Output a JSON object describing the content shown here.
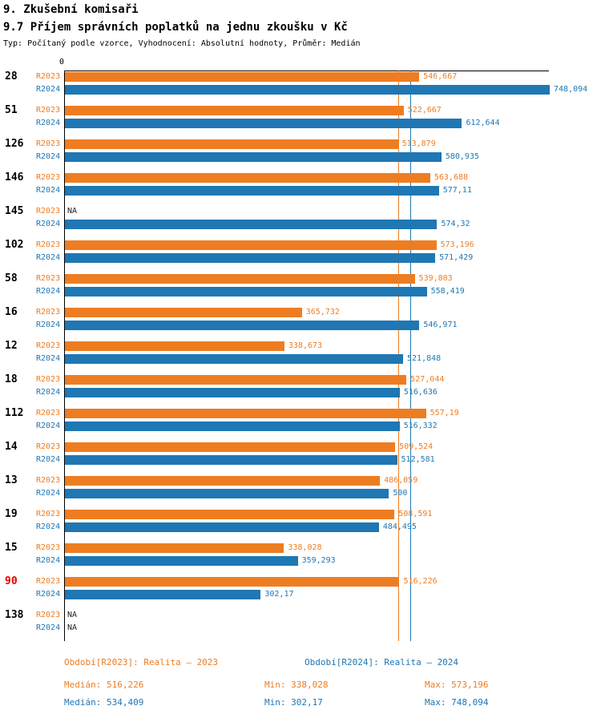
{
  "header": {
    "title1": "9. Zkušební komisaři",
    "title2": "9.7 Příjem správních poplatků na jednu zkoušku v Kč",
    "subtitle": "Typ: Počítaný podle vzorce, Vyhodnocení: Absolutní hodnoty, Průměr: Medián"
  },
  "colors": {
    "r2023": "#EE7D22",
    "r2024": "#1F77B4",
    "highlight": "#E80000",
    "axis": "#000000",
    "na_text": "#222222"
  },
  "chart_data": {
    "type": "bar",
    "orientation": "horizontal",
    "xlim": [
      0,
      748.094
    ],
    "axis_zero_label": "0",
    "grid": false,
    "series_labels": {
      "r2023": "R2023",
      "r2024": "R2024"
    },
    "reference_lines": [
      {
        "series": "r2023",
        "value": 516.226,
        "meaning": "Medián R2023"
      },
      {
        "series": "r2024",
        "value": 534.409,
        "meaning": "Medián R2024"
      }
    ],
    "groups": [
      {
        "id": "28",
        "highlight": false,
        "r2023": {
          "value": 546.667,
          "label": "546,667"
        },
        "r2024": {
          "value": 748.094,
          "label": "748,094"
        }
      },
      {
        "id": "51",
        "highlight": false,
        "r2023": {
          "value": 522.667,
          "label": "522,667"
        },
        "r2024": {
          "value": 612.644,
          "label": "612,644"
        }
      },
      {
        "id": "126",
        "highlight": false,
        "r2023": {
          "value": 513.879,
          "label": "513,879"
        },
        "r2024": {
          "value": 580.935,
          "label": "580,935"
        }
      },
      {
        "id": "146",
        "highlight": false,
        "r2023": {
          "value": 563.688,
          "label": "563,688"
        },
        "r2024": {
          "value": 577.11,
          "label": "577,11"
        }
      },
      {
        "id": "145",
        "highlight": false,
        "r2023": {
          "value": null,
          "label": "NA"
        },
        "r2024": {
          "value": 574.32,
          "label": "574,32"
        }
      },
      {
        "id": "102",
        "highlight": false,
        "r2023": {
          "value": 573.196,
          "label": "573,196"
        },
        "r2024": {
          "value": 571.429,
          "label": "571,429"
        }
      },
      {
        "id": "58",
        "highlight": false,
        "r2023": {
          "value": 539.803,
          "label": "539,803"
        },
        "r2024": {
          "value": 558.419,
          "label": "558,419"
        }
      },
      {
        "id": "16",
        "highlight": false,
        "r2023": {
          "value": 365.732,
          "label": "365,732"
        },
        "r2024": {
          "value": 546.971,
          "label": "546,971"
        }
      },
      {
        "id": "12",
        "highlight": false,
        "r2023": {
          "value": 338.673,
          "label": "338,673"
        },
        "r2024": {
          "value": 521.848,
          "label": "521,848"
        }
      },
      {
        "id": "18",
        "highlight": false,
        "r2023": {
          "value": 527.044,
          "label": "527,044"
        },
        "r2024": {
          "value": 516.636,
          "label": "516,636"
        }
      },
      {
        "id": "112",
        "highlight": false,
        "r2023": {
          "value": 557.19,
          "label": "557,19"
        },
        "r2024": {
          "value": 516.332,
          "label": "516,332"
        }
      },
      {
        "id": "14",
        "highlight": false,
        "r2023": {
          "value": 509.524,
          "label": "509,524"
        },
        "r2024": {
          "value": 512.581,
          "label": "512,581"
        }
      },
      {
        "id": "13",
        "highlight": false,
        "r2023": {
          "value": 486.059,
          "label": "486,059"
        },
        "r2024": {
          "value": 500,
          "label": "500"
        }
      },
      {
        "id": "19",
        "highlight": false,
        "r2023": {
          "value": 508.591,
          "label": "508,591"
        },
        "r2024": {
          "value": 484.495,
          "label": "484,495"
        }
      },
      {
        "id": "15",
        "highlight": false,
        "r2023": {
          "value": 338.028,
          "label": "338,028"
        },
        "r2024": {
          "value": 359.293,
          "label": "359,293"
        }
      },
      {
        "id": "90",
        "highlight": true,
        "r2023": {
          "value": 516.226,
          "label": "516,226"
        },
        "r2024": {
          "value": 302.17,
          "label": "302,17"
        }
      },
      {
        "id": "138",
        "highlight": false,
        "r2023": {
          "value": null,
          "label": "NA"
        },
        "r2024": {
          "value": null,
          "label": "NA"
        }
      }
    ]
  },
  "legend": {
    "r2023": "Období[R2023]: Realita – 2023",
    "r2024": "Období[R2024]: Realita – 2024"
  },
  "stats": {
    "r2023": {
      "median": "Medián: 516,226",
      "min": "Min: 338,028",
      "max": "Max: 573,196"
    },
    "r2024": {
      "median": "Medián: 534,409",
      "min": "Min: 302,17",
      "max": "Max: 748,094"
    }
  }
}
